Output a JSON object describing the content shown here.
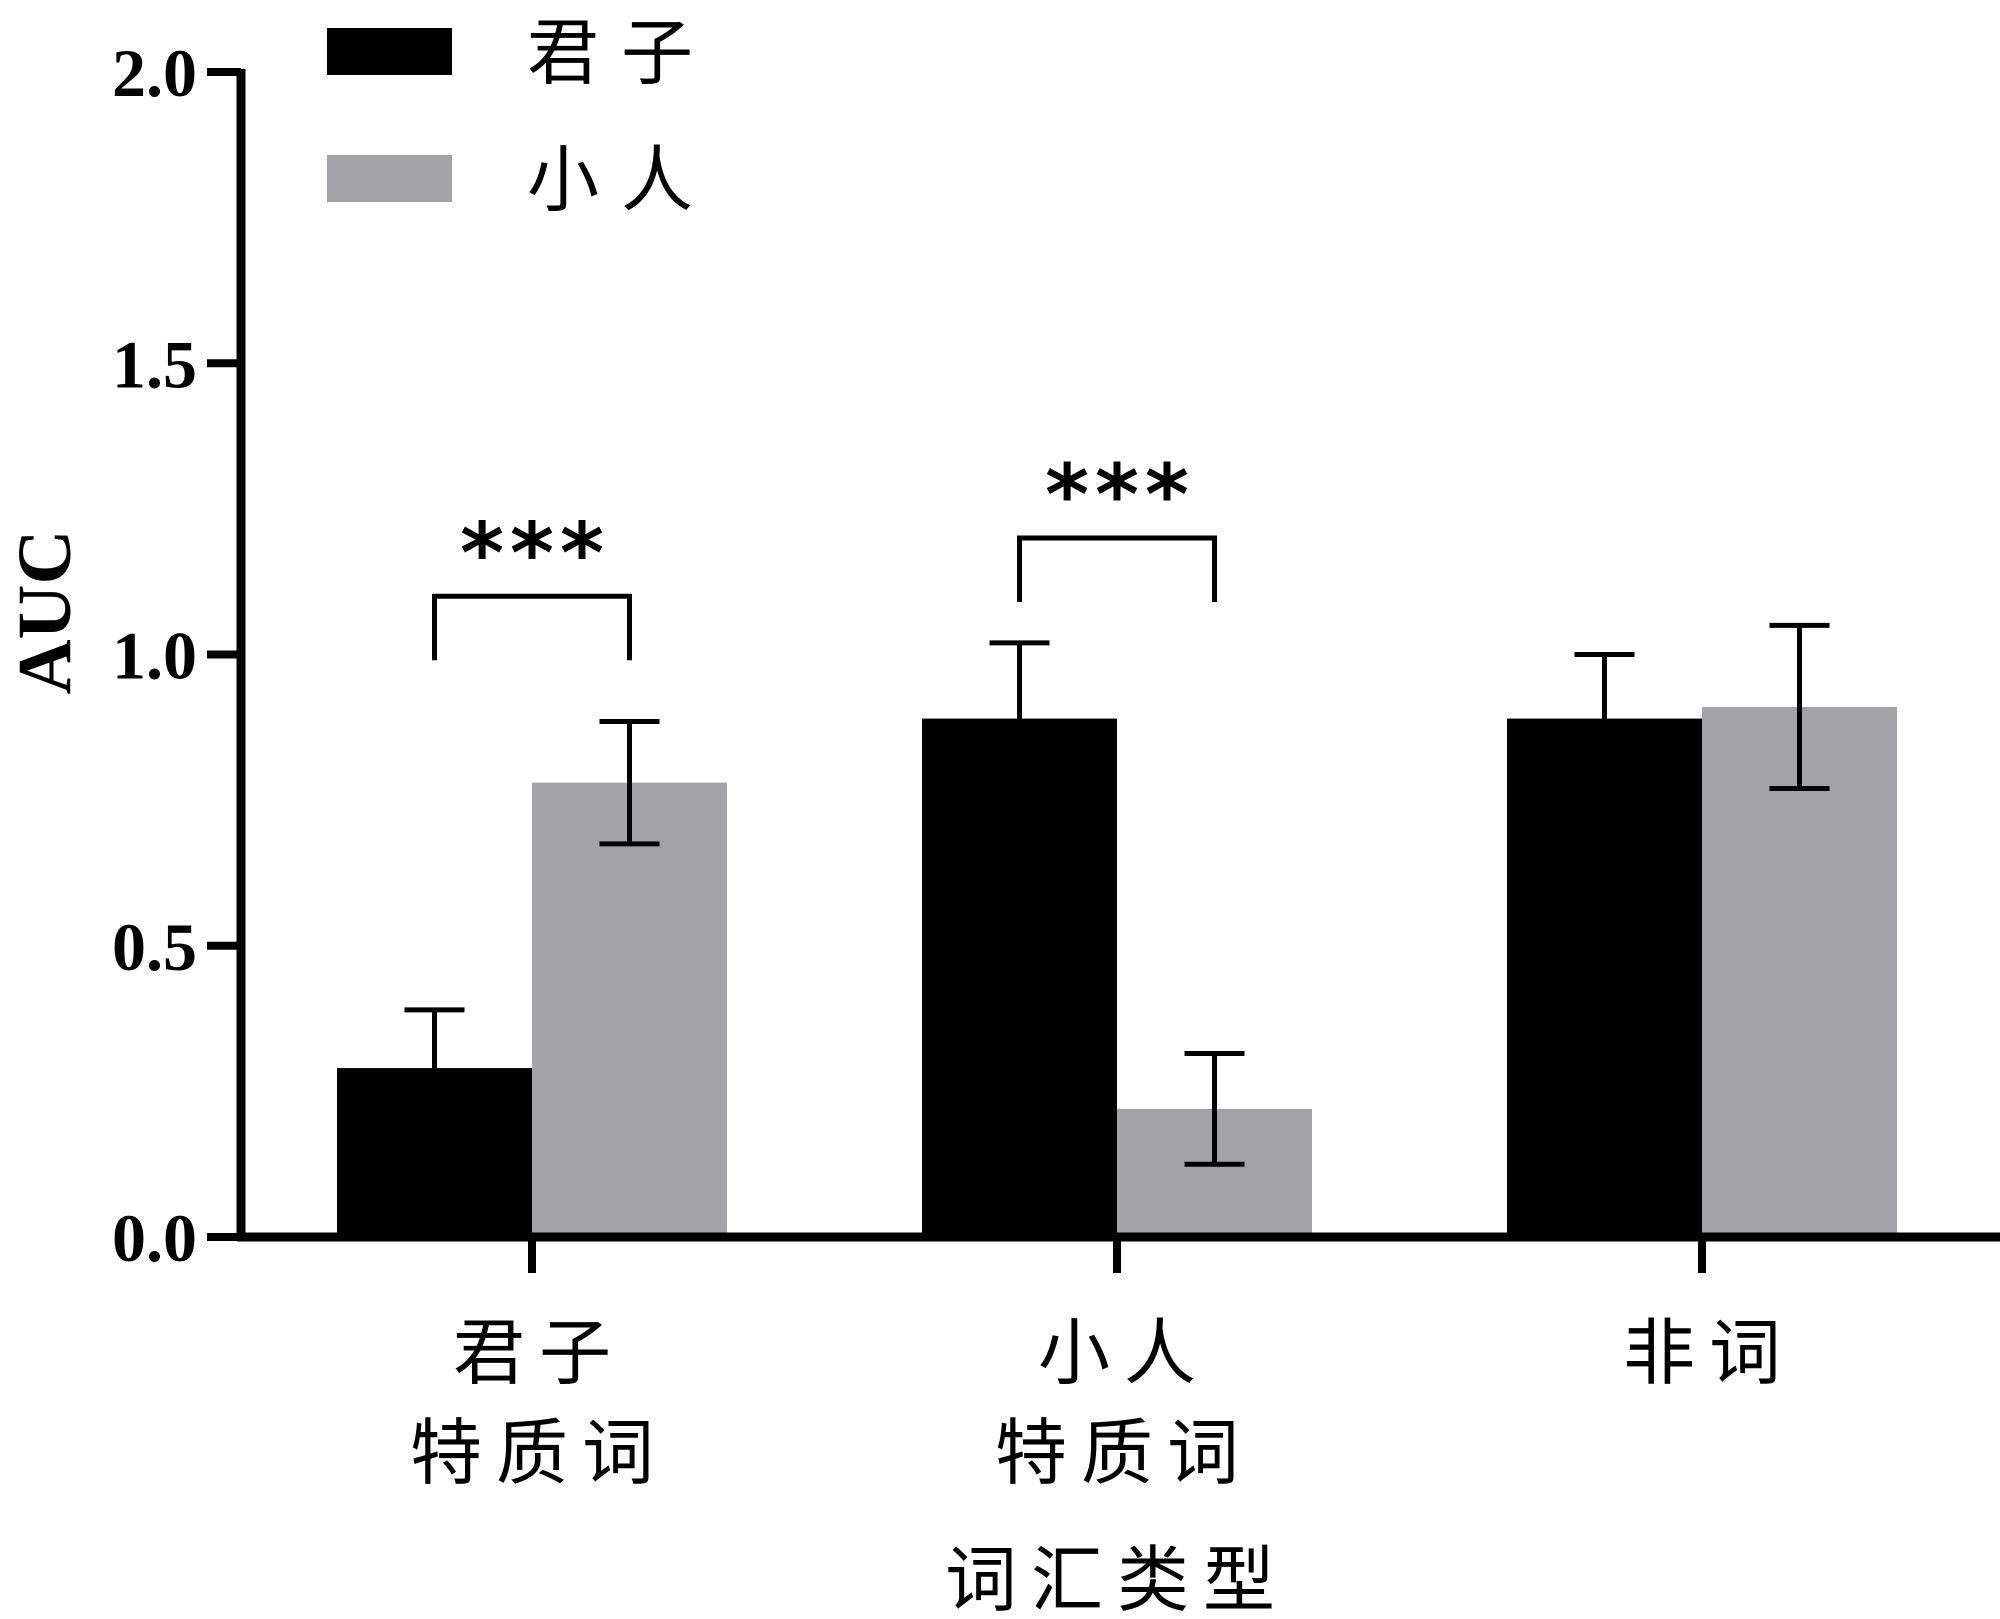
{
  "chart_data": {
    "type": "bar",
    "categories": [
      [
        "君子",
        "特质词"
      ],
      [
        "小人",
        "特质词"
      ],
      [
        "非词"
      ]
    ],
    "series": [
      {
        "name": "君子",
        "color": "#000000",
        "values": [
          0.29,
          0.89,
          0.89
        ],
        "errors": [
          0.1,
          0.13,
          0.11
        ]
      },
      {
        "name": "小人",
        "color": "#a3a3a7",
        "values": [
          0.78,
          0.22,
          0.91
        ],
        "errors": [
          0.105,
          0.095,
          0.14
        ]
      }
    ],
    "xlabel": "词汇类型",
    "ylabel": "AUC",
    "ylim": [
      0,
      2.0
    ],
    "yticks": [
      0.0,
      0.5,
      1.0,
      1.5,
      2.0
    ],
    "ytick_labels": [
      "0.0",
      "0.5",
      "1.0",
      "1.5",
      "2.0"
    ],
    "legend_position": "top-left",
    "significance": [
      {
        "category_index": 0,
        "label": "***",
        "y": 1.1
      },
      {
        "category_index": 1,
        "label": "***",
        "y": 1.2
      }
    ]
  }
}
